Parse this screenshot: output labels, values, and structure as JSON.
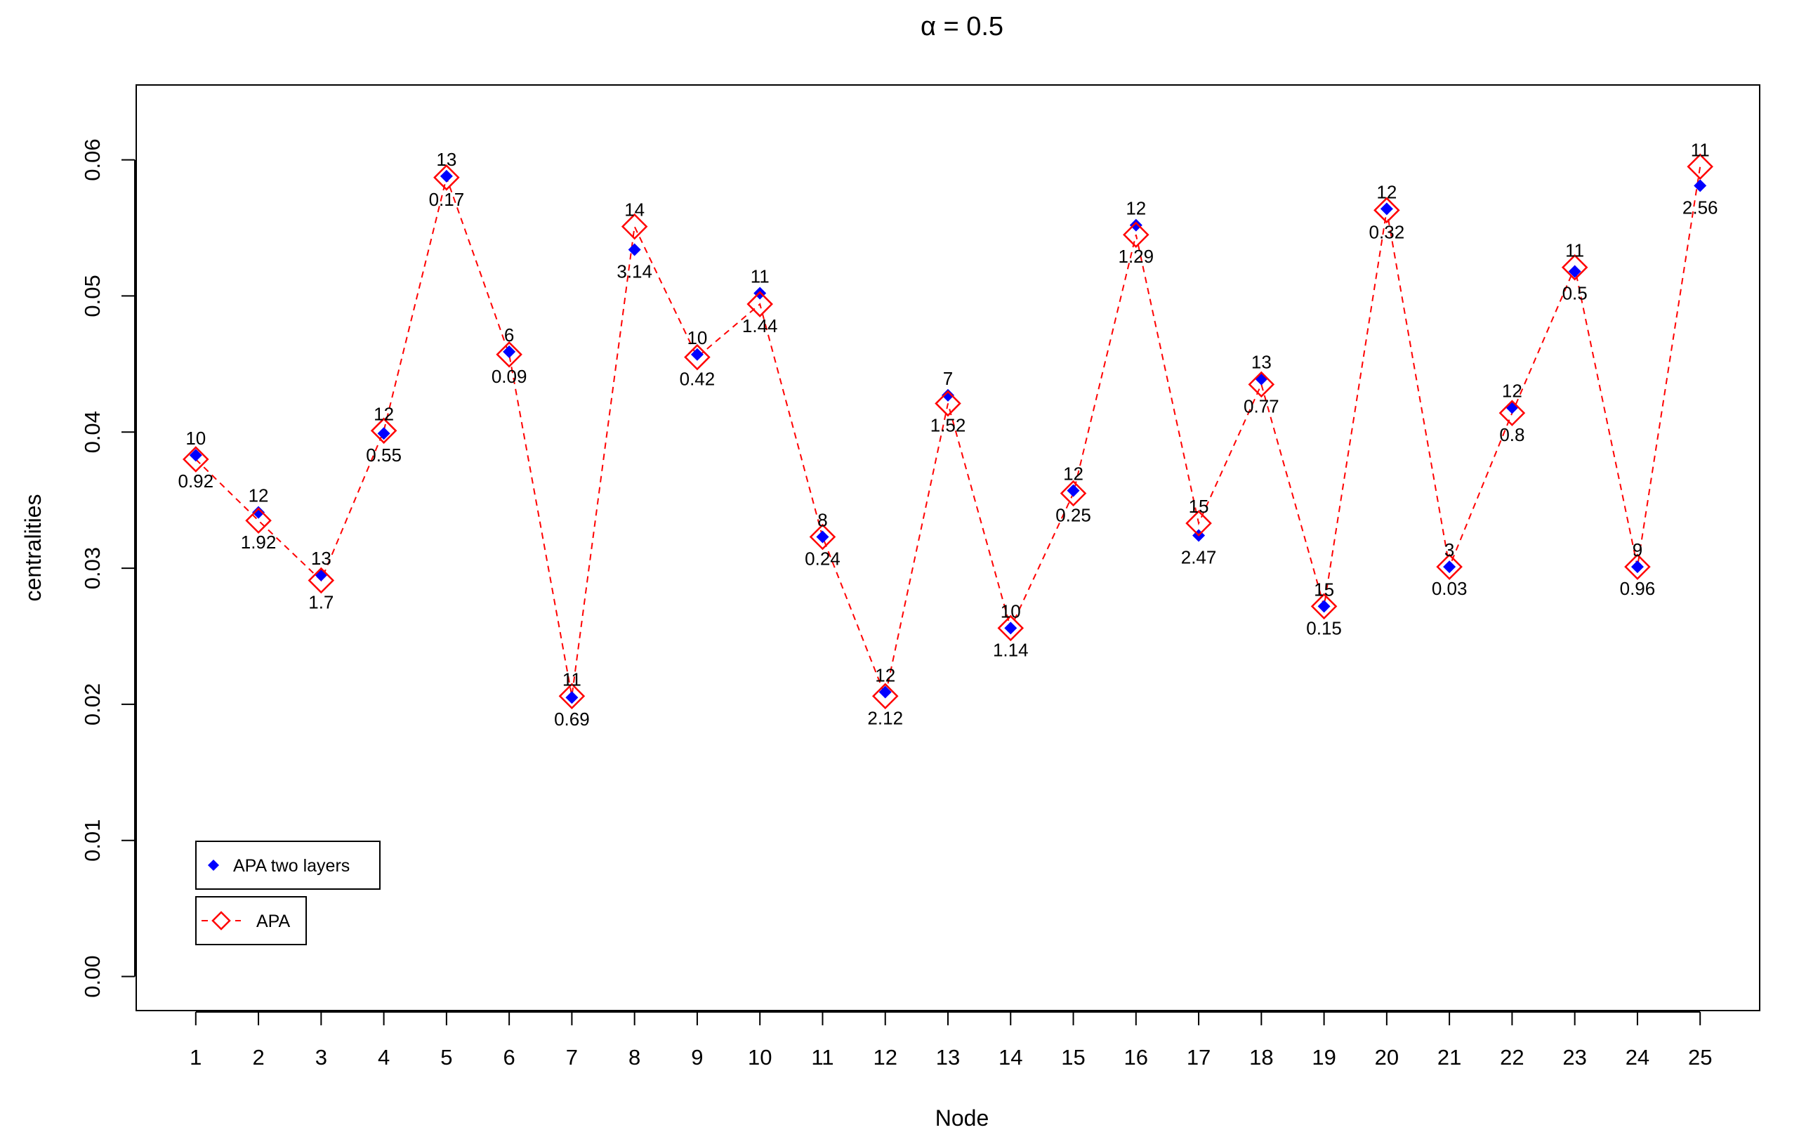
{
  "chart_data": {
    "type": "scatter",
    "title": "α = 0.5",
    "xlabel": "Node",
    "ylabel": "centralities",
    "xlim": [
      0.05,
      25.95
    ],
    "ylim": [
      -0.0025,
      0.0655
    ],
    "x_ticks": [
      "1",
      "2",
      "3",
      "4",
      "5",
      "6",
      "7",
      "8",
      "9",
      "10",
      "11",
      "12",
      "13",
      "14",
      "15",
      "16",
      "17",
      "18",
      "19",
      "20",
      "21",
      "22",
      "23",
      "24",
      "25"
    ],
    "y_ticks": [
      "0.00",
      "0.01",
      "0.02",
      "0.03",
      "0.04",
      "0.05",
      "0.06"
    ],
    "x": [
      1,
      2,
      3,
      4,
      5,
      6,
      7,
      8,
      9,
      10,
      11,
      12,
      13,
      14,
      15,
      16,
      17,
      18,
      19,
      20,
      21,
      22,
      23,
      24,
      25
    ],
    "series": [
      {
        "name": "APA two layers",
        "color": "#0000ff",
        "marker": "filled-diamond",
        "line": "none",
        "values": [
          0.0383,
          0.0341,
          0.0295,
          0.0399,
          0.0588,
          0.0459,
          0.0205,
          0.0534,
          0.0457,
          0.0502,
          0.0323,
          0.0209,
          0.0427,
          0.0256,
          0.0357,
          0.0552,
          0.0324,
          0.0439,
          0.0272,
          0.0564,
          0.0301,
          0.0418,
          0.0518,
          0.0301,
          0.0581
        ]
      },
      {
        "name": "APA",
        "color": "#ff0000",
        "marker": "open-diamond",
        "line": "dashed",
        "values": [
          0.038,
          0.0335,
          0.0291,
          0.0401,
          0.0587,
          0.0457,
          0.0206,
          0.0551,
          0.0455,
          0.0494,
          0.0323,
          0.0206,
          0.0421,
          0.0256,
          0.0355,
          0.0545,
          0.0333,
          0.0435,
          0.0272,
          0.0563,
          0.0301,
          0.0414,
          0.0521,
          0.0301,
          0.0595
        ]
      }
    ],
    "labels_above": [
      "10",
      "12",
      "13",
      "12",
      "13",
      "6",
      "11",
      "14",
      "10",
      "11",
      "8",
      "12",
      "7",
      "10",
      "12",
      "12",
      "15",
      "13",
      "15",
      "12",
      "3",
      "12",
      "11",
      "9",
      "11"
    ],
    "labels_below": [
      "0.92",
      "1.92",
      "1.7",
      "0.55",
      "0.17",
      "0.09",
      "0.69",
      "3.14",
      "0.42",
      "1.44",
      "0.24",
      "2.12",
      "1.52",
      "1.14",
      "0.25",
      "1.29",
      "2.47",
      "0.77",
      "0.15",
      "0.32",
      "0.03",
      "0.8",
      "0.5",
      "0.96",
      "2.56"
    ],
    "legend_position": "bottom-left",
    "grid": false
  }
}
